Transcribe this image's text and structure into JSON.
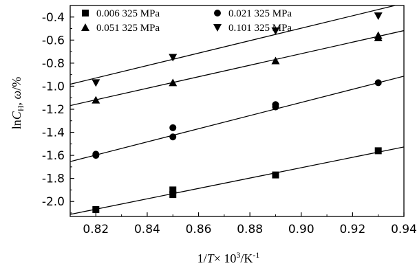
{
  "chart_data": {
    "type": "scatter",
    "title": "",
    "xlabel": {
      "prefix": "1/",
      "var": "T",
      "mid": "× 10",
      "sup": "3",
      "unit_prefix": "/K",
      "unit_sup": "-1"
    },
    "ylabel": {
      "pre": "ln",
      "var": "C",
      "sub": "H",
      "mid": ", ",
      "var2": "ω",
      "post": "/%"
    },
    "xlim": [
      0.81,
      0.94
    ],
    "ylim": [
      -2.13,
      -0.3
    ],
    "xticks": [
      0.82,
      0.84,
      0.86,
      0.88,
      0.9,
      0.92,
      0.94
    ],
    "xtick_labels": [
      "0.82",
      "0.84",
      "0.86",
      "0.88",
      "0.90",
      "0.92",
      "0.94"
    ],
    "yticks": [
      -2.0,
      -1.8,
      -1.6,
      -1.4,
      -1.2,
      -1.0,
      -0.8,
      -0.6,
      -0.4
    ],
    "ytick_labels": [
      "-2.0",
      "-1.8",
      "-1.6",
      "-1.4",
      "-1.2",
      "-1.0",
      "-0.8",
      "-0.6",
      "-0.4"
    ],
    "legend_position": "top",
    "grid": false,
    "series": [
      {
        "name": "0.006 325 MPa",
        "marker": "square",
        "points": [
          [
            0.82,
            -2.07
          ],
          [
            0.85,
            -1.9
          ],
          [
            0.85,
            -1.94
          ],
          [
            0.89,
            -1.77
          ],
          [
            0.93,
            -1.56
          ]
        ],
        "fit": {
          "slope": 4.5,
          "intercept": -5.757
        }
      },
      {
        "name": "0.021 325 MPa",
        "marker": "circle",
        "points": [
          [
            0.82,
            -1.59
          ],
          [
            0.82,
            -1.6
          ],
          [
            0.85,
            -1.36
          ],
          [
            0.85,
            -1.44
          ],
          [
            0.89,
            -1.16
          ],
          [
            0.89,
            -1.18
          ],
          [
            0.93,
            -0.97
          ]
        ],
        "fit": {
          "slope": 5.7,
          "intercept": -6.271
        }
      },
      {
        "name": "0.051 325 MPa",
        "marker": "triangle-up",
        "points": [
          [
            0.82,
            -1.12
          ],
          [
            0.85,
            -0.97
          ],
          [
            0.89,
            -0.78
          ],
          [
            0.93,
            -0.58
          ],
          [
            0.93,
            -0.56
          ]
        ],
        "fit": {
          "slope": 5.0,
          "intercept": -5.218
        }
      },
      {
        "name": "0.101 325 MPa",
        "marker": "triangle-down",
        "points": [
          [
            0.82,
            -0.97
          ],
          [
            0.85,
            -0.75
          ],
          [
            0.89,
            -0.52
          ],
          [
            0.93,
            -0.39
          ]
        ],
        "fit": {
          "slope": 5.4,
          "intercept": -5.357
        }
      }
    ]
  }
}
